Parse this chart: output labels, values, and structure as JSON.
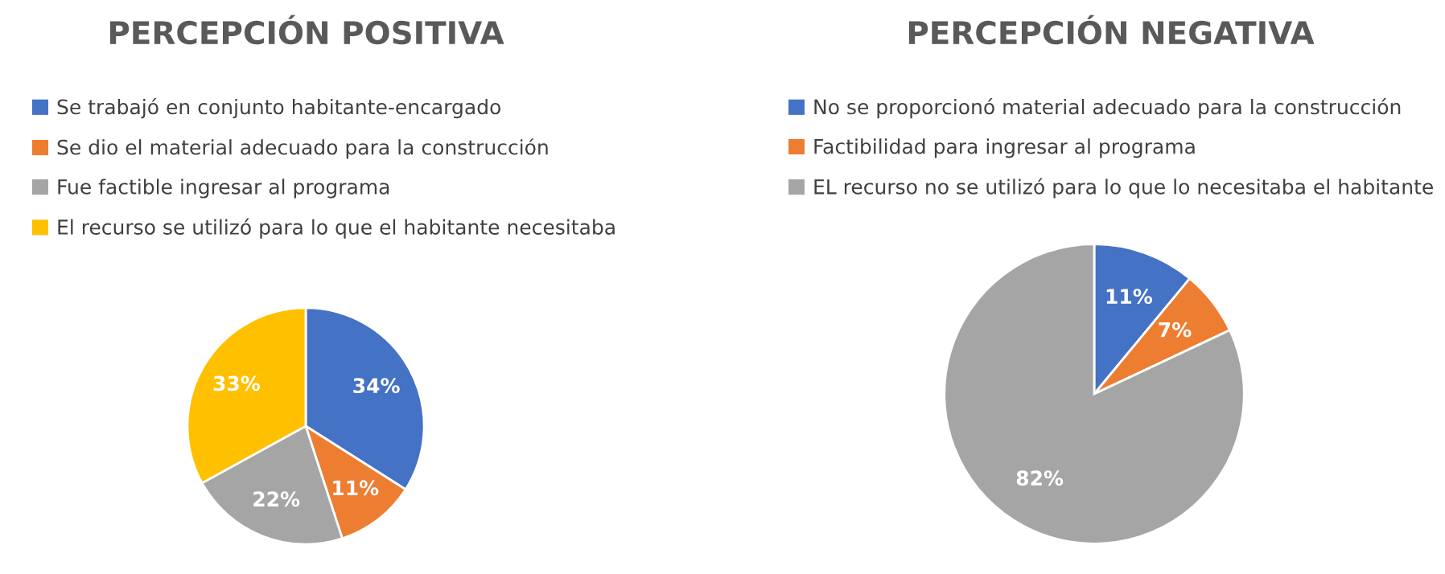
{
  "chart_data": [
    {
      "type": "pie",
      "title": "PERCEPCIÓN POSITIVA",
      "categories": [
        "Se trabajó en conjunto habitante-encargado",
        "Se dio el material adecuado para la construcción",
        "Fue factible ingresar al programa",
        "El recurso se utilizó para lo que el habitante necesitaba"
      ],
      "values": [
        34,
        11,
        22,
        33
      ],
      "value_labels": [
        "34%",
        "11%",
        "22%",
        "33%"
      ],
      "colors": [
        "#4472c4",
        "#ed7d31",
        "#a5a5a5",
        "#ffc000"
      ],
      "legend": "top"
    },
    {
      "type": "pie",
      "title": "PERCEPCIÓN NEGATIVA",
      "categories": [
        "No se proporcionó material adecuado para la construcción",
        "Factibilidad para ingresar al programa",
        "EL recurso no se utilizó para lo que lo necesitaba el habitante"
      ],
      "values": [
        11,
        7,
        82
      ],
      "value_labels": [
        "11%",
        "7%",
        "82%"
      ],
      "colors": [
        "#4472c4",
        "#ed7d31",
        "#a5a5a5"
      ],
      "legend": "top"
    }
  ]
}
